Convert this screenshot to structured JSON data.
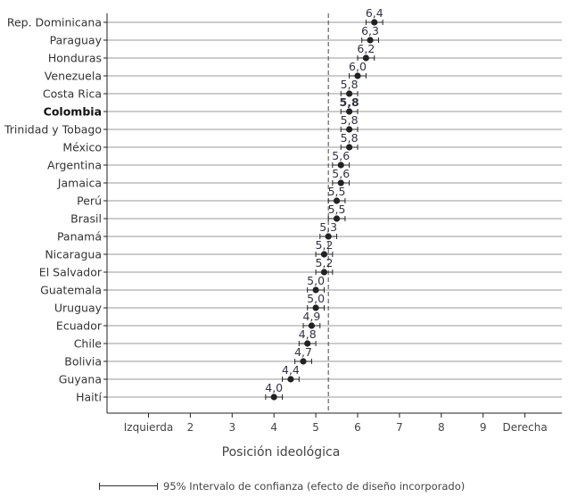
{
  "chart_data": {
    "type": "dot-errorbar",
    "categories": [
      "Rep. Dominicana",
      "Paraguay",
      "Honduras",
      "Venezuela",
      "Costa Rica",
      "Colombia",
      "Trinidad y Tobago",
      "México",
      "Argentina",
      "Jamaica",
      "Perú",
      "Brasil",
      "Panamá",
      "Nicaragua",
      "El Salvador",
      "Guatemala",
      "Uruguay",
      "Ecuador",
      "Chile",
      "Bolivia",
      "Guyana",
      "Haití"
    ],
    "values": [
      6.4,
      6.3,
      6.2,
      6.0,
      5.8,
      5.8,
      5.8,
      5.8,
      5.6,
      5.6,
      5.5,
      5.5,
      5.3,
      5.2,
      5.2,
      5.0,
      5.0,
      4.9,
      4.8,
      4.7,
      4.4,
      4.0
    ],
    "value_labels": [
      "6,4",
      "6,3",
      "6,2",
      "6,0",
      "5,8",
      "5,8",
      "5,8",
      "5,8",
      "5,6",
      "5,6",
      "5,5",
      "5,5",
      "5,3",
      "5,2",
      "5,2",
      "5,0",
      "5,0",
      "4,9",
      "4,8",
      "4,7",
      "4,4",
      "4,0"
    ],
    "ci_half_width": 0.2,
    "highlight": "Colombia",
    "reference_line": 5.3,
    "xlim": [
      0.5,
      10.5
    ],
    "xticks": [
      1,
      2,
      3,
      4,
      5,
      6,
      7,
      8,
      9,
      10
    ],
    "xtick_labels": [
      "Izquierda",
      "2",
      "3",
      "4",
      "5",
      "6",
      "7",
      "8",
      "9",
      "Derecha"
    ],
    "xlabel": "Posición ideológica",
    "legend": "95% Intervalo de confianza (efecto de diseño incorporado)",
    "grid": "horizontal",
    "colors": {
      "point": "#222222",
      "grid": "#999999",
      "label": "#333344",
      "text": "#333333"
    }
  }
}
